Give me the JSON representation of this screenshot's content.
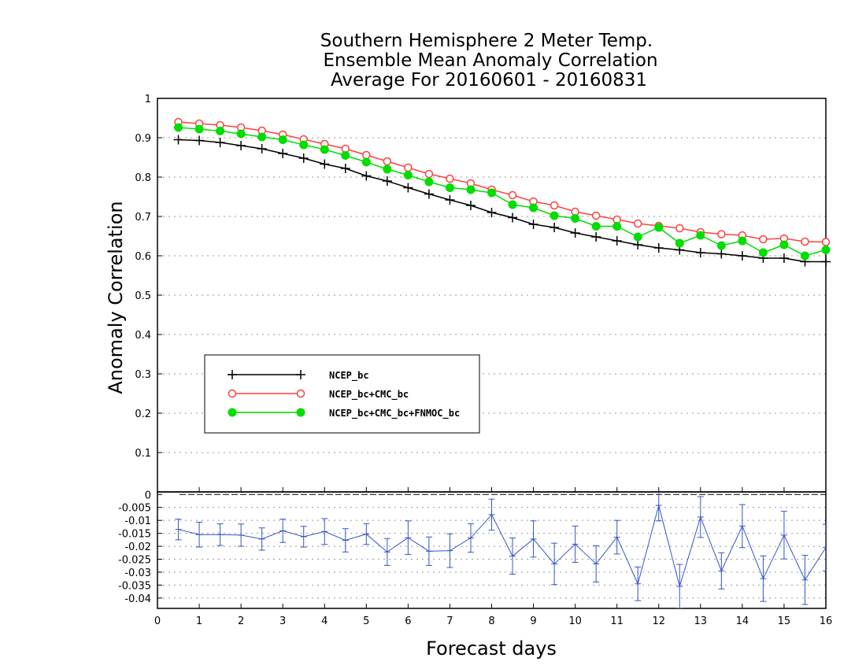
{
  "title": {
    "line1": "Southern Hemisphere 2 Meter Temp.",
    "line2": "Ensemble Mean Anomaly Correlation",
    "line3": "Average For 20160601 - 20160831"
  },
  "chart_data": [
    {
      "type": "line",
      "title": "Southern Hemisphere 2 Meter Temp. Ensemble Mean Anomaly Correlation Average For 20160601 - 20160831",
      "xlabel": "Forecast days",
      "ylabel": "Anomaly Correlation",
      "xlim": [
        0,
        16
      ],
      "ylim": [
        0,
        1
      ],
      "grid": true,
      "legend_position": "lower-left",
      "x_ticks": [
        "0",
        "1",
        "2",
        "3",
        "4",
        "5",
        "6",
        "7",
        "8",
        "9",
        "10",
        "11",
        "12",
        "13",
        "14",
        "15",
        "16"
      ],
      "y_ticks": [
        "0.1",
        "0.2",
        "0.3",
        "0.4",
        "0.5",
        "0.6",
        "0.7",
        "0.8",
        "0.9",
        "1"
      ],
      "x": [
        0.5,
        1,
        1.5,
        2,
        2.5,
        3,
        3.5,
        4,
        4.5,
        5,
        5.5,
        6,
        6.5,
        7,
        7.5,
        8,
        8.5,
        9,
        9.5,
        10,
        10.5,
        11,
        11.5,
        12,
        12.5,
        13,
        13.5,
        14,
        14.5,
        15,
        15.5,
        16
      ],
      "series": [
        {
          "name": "NCEP_bc",
          "color": "#000000",
          "marker": "plus",
          "values": [
            0.895,
            0.893,
            0.888,
            0.88,
            0.872,
            0.86,
            0.848,
            0.833,
            0.822,
            0.803,
            0.79,
            0.773,
            0.757,
            0.742,
            0.728,
            0.71,
            0.697,
            0.68,
            0.672,
            0.658,
            0.648,
            0.638,
            0.628,
            0.62,
            0.615,
            0.608,
            0.605,
            0.6,
            0.594,
            0.594,
            0.585,
            0.585
          ]
        },
        {
          "name": "NCEP_bc+CMC_bc",
          "color": "#ff4040",
          "marker": "open-circle",
          "values": [
            0.94,
            0.936,
            0.932,
            0.926,
            0.918,
            0.908,
            0.896,
            0.884,
            0.872,
            0.856,
            0.84,
            0.824,
            0.808,
            0.796,
            0.784,
            0.768,
            0.754,
            0.738,
            0.728,
            0.712,
            0.702,
            0.692,
            0.682,
            0.676,
            0.67,
            0.66,
            0.655,
            0.652,
            0.642,
            0.644,
            0.636,
            0.635
          ]
        },
        {
          "name": "NCEP_bc+CMC_bc+FNMOC_bc",
          "color": "#00dd00",
          "marker": "filled-circle",
          "values": [
            0.926,
            0.922,
            0.917,
            0.91,
            0.902,
            0.895,
            0.882,
            0.87,
            0.855,
            0.838,
            0.82,
            0.805,
            0.788,
            0.773,
            0.768,
            0.76,
            0.73,
            0.722,
            0.702,
            0.695,
            0.675,
            0.675,
            0.648,
            0.672,
            0.632,
            0.652,
            0.626,
            0.638,
            0.608,
            0.628,
            0.6,
            0.615
          ]
        }
      ]
    },
    {
      "type": "line",
      "title": "",
      "xlabel": "Forecast days",
      "ylabel": "",
      "xlim": [
        0,
        16
      ],
      "ylim": [
        -0.044,
        0.001
      ],
      "grid": true,
      "y_ticks": [
        "0",
        "-0.005",
        "-0.01",
        "-0.015",
        "-0.02",
        "-0.025",
        "-0.03",
        "-0.035",
        "-0.04"
      ],
      "x": [
        0.5,
        1,
        1.5,
        2,
        2.5,
        3,
        3.5,
        4,
        4.5,
        5,
        5.5,
        6,
        6.5,
        7,
        7.5,
        8,
        8.5,
        9,
        9.5,
        10,
        10.5,
        11,
        11.5,
        12,
        12.5,
        13,
        13.5,
        14,
        14.5,
        15,
        15.5,
        16
      ],
      "series": [
        {
          "color": "#3355cc",
          "values": [
            -0.0135,
            -0.0155,
            -0.0155,
            -0.0157,
            -0.0172,
            -0.014,
            -0.0163,
            -0.0143,
            -0.0177,
            -0.0153,
            -0.0222,
            -0.0167,
            -0.0219,
            -0.0217,
            -0.0168,
            -0.0078,
            -0.0238,
            -0.0172,
            -0.0268,
            -0.0192,
            -0.0268,
            -0.0165,
            -0.0345,
            -0.0042,
            -0.0355,
            -0.0087,
            -0.0295,
            -0.0122,
            -0.0325,
            -0.0157,
            -0.033,
            -0.0205
          ],
          "error": [
            0.004,
            0.0048,
            0.0042,
            0.0043,
            0.0043,
            0.0045,
            0.004,
            0.005,
            0.0045,
            0.004,
            0.0052,
            0.0065,
            0.0055,
            0.0065,
            0.0055,
            0.006,
            0.007,
            0.007,
            0.008,
            0.007,
            0.007,
            0.0065,
            0.0065,
            0.006,
            0.0085,
            0.0079,
            0.007,
            0.0083,
            0.0088,
            0.0092,
            0.0095,
            0.009
          ]
        }
      ]
    }
  ]
}
